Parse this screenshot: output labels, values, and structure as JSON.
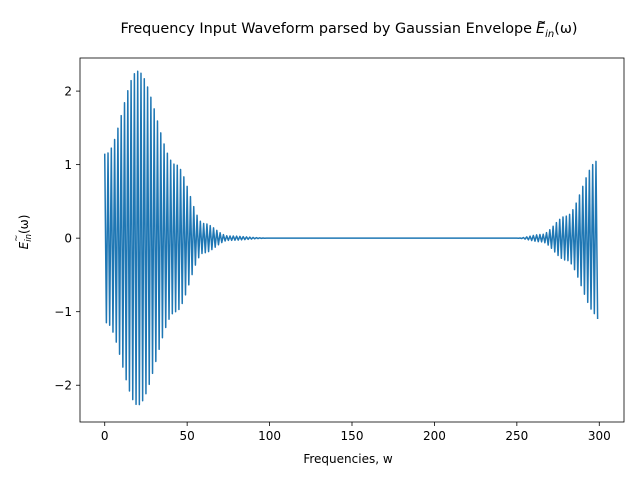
{
  "chart_data": {
    "type": "line",
    "title": "Frequency Input Waveform parsed by Gaussian Envelope",
    "title_math": {
      "base": "E",
      "tilde": "~",
      "subscript": "in",
      "argument": "(ω)"
    },
    "xlabel": "Frequencies, w",
    "ylabel_math": {
      "base": "E",
      "tilde": "~",
      "subscript": "in",
      "argument": "(ω)"
    },
    "xlim": [
      -15,
      315
    ],
    "ylim": [
      -2.5,
      2.45
    ],
    "xticks": [
      0,
      50,
      100,
      150,
      200,
      250,
      300
    ],
    "xtick_labels": [
      "0",
      "50",
      "100",
      "150",
      "200",
      "250",
      "300"
    ],
    "yticks": [
      -2,
      -1,
      0,
      1,
      2
    ],
    "ytick_labels": [
      "−2",
      "−1",
      "0",
      "1",
      "2"
    ],
    "grid": false,
    "series": [
      {
        "color": "#1f77b4",
        "x_start": 0,
        "x_end": 299,
        "x_step": 1,
        "envelope_peaks": [
          {
            "x": 1,
            "value": 1.15
          },
          {
            "x": 20,
            "value": 2.27
          },
          {
            "x": 43,
            "value": 1.0
          },
          {
            "x": 60,
            "value": 0.2
          },
          {
            "x": 75,
            "value": 0.03
          },
          {
            "x": 100,
            "value": 0.0
          },
          {
            "x": 250,
            "value": 0.0
          },
          {
            "x": 265,
            "value": 0.05
          },
          {
            "x": 280,
            "value": 0.3
          },
          {
            "x": 299,
            "value": 1.05
          }
        ],
        "sign_alternates_every_point": true,
        "first_value": 1.15,
        "last_value": -1.1
      }
    ]
  }
}
